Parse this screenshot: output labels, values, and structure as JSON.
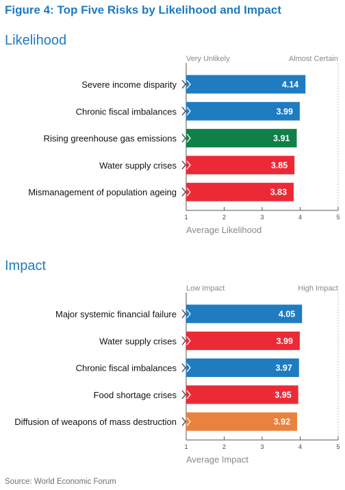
{
  "figure_title": "Figure 4: Top Five Risks by Likelihood and Impact",
  "source": "Source: World Economic Forum",
  "colors": {
    "title": "#1c7ac0",
    "blue": "#1f7cc1",
    "green": "#0f8048",
    "red": "#ec2a36",
    "orange": "#e9823e",
    "axis": "#555555",
    "muted": "#888888"
  },
  "chart_data": [
    {
      "type": "bar",
      "orientation": "horizontal",
      "title": "Likelihood",
      "scale_low_label": "Very Unlikely",
      "scale_high_label": "Almost Certain",
      "xlabel": "Average Likelihood",
      "xlim": [
        1,
        5
      ],
      "ticks": [
        "1",
        "2",
        "3",
        "4",
        "5"
      ],
      "categories": [
        "Severe income disparity",
        "Chronic fiscal imbalances",
        "Rising greenhouse gas emissions",
        "Water supply crises",
        "Mismanagement of population ageing"
      ],
      "values": [
        4.14,
        3.99,
        3.91,
        3.85,
        3.83
      ],
      "value_labels": [
        "4.14",
        "3.99",
        "3.91",
        "3.85",
        "3.83"
      ],
      "bar_colors": [
        "blue",
        "blue",
        "green",
        "red",
        "red"
      ]
    },
    {
      "type": "bar",
      "orientation": "horizontal",
      "title": "Impact",
      "scale_low_label": "Low Impact",
      "scale_high_label": "High Impact",
      "xlabel": "Average Impact",
      "xlim": [
        1,
        5
      ],
      "ticks": [
        "1",
        "2",
        "3",
        "4",
        "5"
      ],
      "categories": [
        "Major systemic financial failure",
        "Water supply crises",
        "Chronic fiscal imbalances",
        "Food shortage crises",
        "Diffusion of weapons of mass destruction"
      ],
      "values": [
        4.05,
        3.99,
        3.97,
        3.95,
        3.92
      ],
      "value_labels": [
        "4.05",
        "3.99",
        "3.97",
        "3.95",
        "3.92"
      ],
      "bar_colors": [
        "blue",
        "red",
        "blue",
        "red",
        "orange"
      ]
    }
  ]
}
